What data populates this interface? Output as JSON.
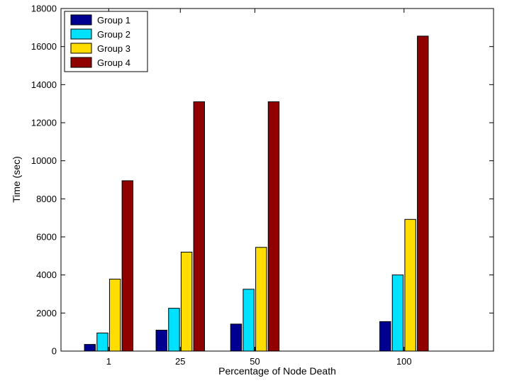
{
  "chart_data": {
    "type": "bar",
    "title": "",
    "xlabel": "Percentage of Node Death",
    "ylabel": "Time (sec)",
    "categories": [
      "1",
      "25",
      "50",
      "100"
    ],
    "x": [
      1,
      25,
      50,
      100
    ],
    "xlim": [
      -15,
      130
    ],
    "ylim": [
      0,
      18000
    ],
    "yticks": [
      0,
      2000,
      4000,
      6000,
      8000,
      10000,
      12000,
      14000,
      16000,
      18000
    ],
    "grid": false,
    "legend_position": "top-left",
    "series": [
      {
        "name": "Group 1",
        "color": "#000090",
        "values": [
          350,
          1100,
          1420,
          1550
        ]
      },
      {
        "name": "Group 2",
        "color": "#00e0ff",
        "values": [
          950,
          2250,
          3250,
          4000
        ]
      },
      {
        "name": "Group 3",
        "color": "#ffdd00",
        "values": [
          3780,
          5200,
          5450,
          6920
        ]
      },
      {
        "name": "Group 4",
        "color": "#900000",
        "values": [
          8950,
          13100,
          13100,
          16550
        ]
      }
    ]
  }
}
